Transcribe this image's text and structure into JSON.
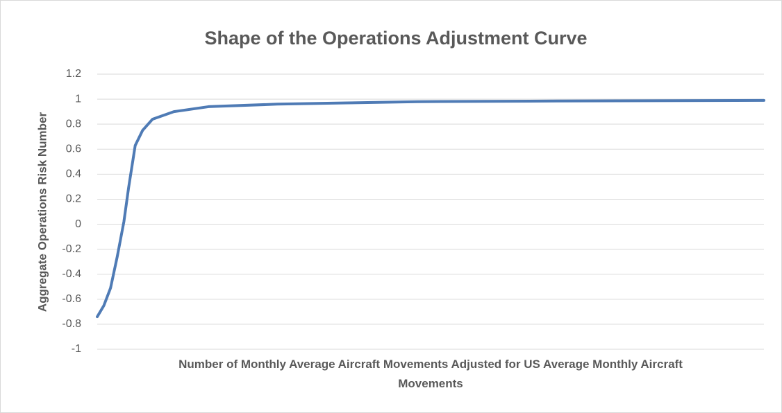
{
  "chart_data": {
    "type": "line",
    "title": "Shape of the Operations Adjustment Curve",
    "xlabel": "Number of Monthly Average Aircraft Movements Adjusted for US Average Monthly Aircraft Movements",
    "ylabel": "Aggregate Operations Risk Number",
    "x": [
      0,
      1,
      2,
      3,
      4,
      4.7,
      5.7,
      6.8,
      8.3,
      11.5,
      16.7,
      27,
      37.5,
      48,
      69,
      100
    ],
    "xlim": [
      0,
      100
    ],
    "series": [
      {
        "name": "Aggregate Operations Risk Number",
        "color": "#4f7bb5",
        "values": [
          -0.74,
          -0.65,
          -0.51,
          -0.26,
          0.02,
          0.29,
          0.63,
          0.75,
          0.84,
          0.9,
          0.94,
          0.96,
          0.97,
          0.98,
          0.985,
          0.99
        ]
      }
    ],
    "ylim": [
      -1,
      1.2
    ],
    "yticks": [
      1.2,
      1,
      0.8,
      0.6,
      0.4,
      0.2,
      0,
      -0.2,
      -0.4,
      -0.6,
      -0.8,
      -1
    ],
    "grid": true
  }
}
